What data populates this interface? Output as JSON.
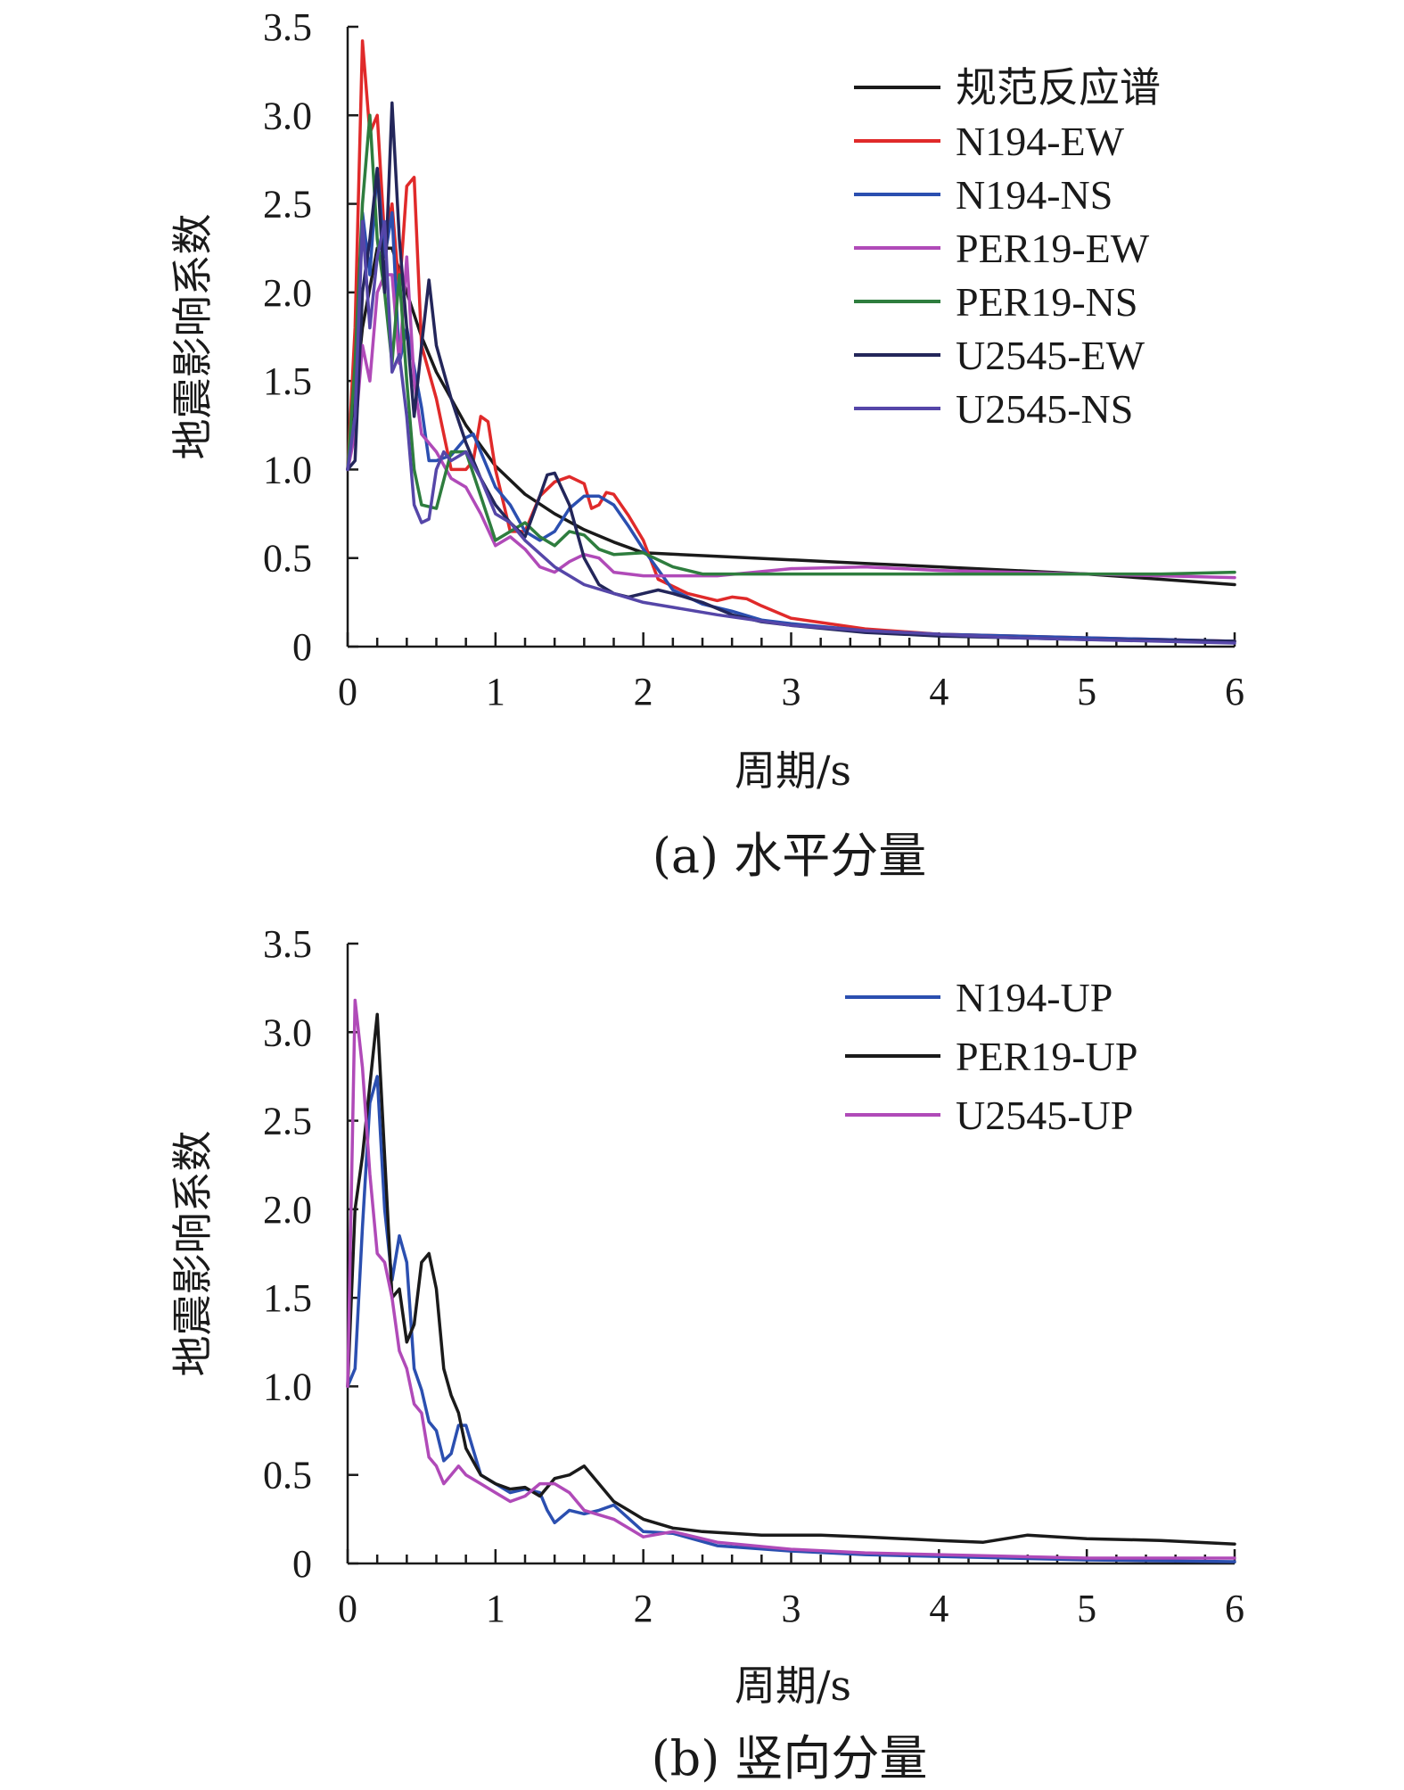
{
  "chart_data": [
    {
      "type": "line",
      "caption": "(a) 水平分量",
      "xlabel": "周期/s",
      "ylabel": "地震影响系数",
      "xlim": [
        0,
        6
      ],
      "ylim": [
        0,
        3.5
      ],
      "xticks": [
        "0",
        "1",
        "2",
        "3",
        "4",
        "5",
        "6"
      ],
      "yticks": [
        "0",
        "0.5",
        "1.0",
        "1.5",
        "2.0",
        "2.5",
        "3.0",
        "3.5"
      ],
      "legend_position": "top-right",
      "series": [
        {
          "name": "规范反应谱",
          "color": "#1a1a1a",
          "x": [
            0,
            0.1,
            0.2,
            0.3,
            0.4,
            0.5,
            0.6,
            0.8,
            1.0,
            1.2,
            1.4,
            1.6,
            1.8,
            2.0,
            2.5,
            3.0,
            3.5,
            4.0,
            4.5,
            5.0,
            5.5,
            6.0
          ],
          "y": [
            1.0,
            1.8,
            2.25,
            2.25,
            2.0,
            1.75,
            1.55,
            1.25,
            1.02,
            0.86,
            0.75,
            0.66,
            0.59,
            0.53,
            0.51,
            0.49,
            0.47,
            0.45,
            0.43,
            0.41,
            0.38,
            0.35
          ]
        },
        {
          "name": "N194-EW",
          "color": "#e02a2a",
          "x": [
            0,
            0.05,
            0.1,
            0.15,
            0.2,
            0.25,
            0.3,
            0.35,
            0.4,
            0.45,
            0.5,
            0.6,
            0.7,
            0.8,
            0.85,
            0.9,
            0.95,
            1.0,
            1.1,
            1.2,
            1.3,
            1.4,
            1.5,
            1.6,
            1.65,
            1.7,
            1.75,
            1.8,
            1.9,
            2.0,
            2.1,
            2.3,
            2.5,
            2.6,
            2.7,
            2.8,
            3.0,
            3.5,
            4.0,
            5.0,
            6.0
          ],
          "y": [
            1.0,
            1.8,
            3.42,
            2.9,
            3.0,
            2.3,
            2.5,
            2.0,
            2.6,
            2.65,
            1.7,
            1.4,
            1.0,
            1.0,
            1.05,
            1.3,
            1.27,
            1.0,
            0.65,
            0.65,
            0.85,
            0.93,
            0.96,
            0.92,
            0.78,
            0.8,
            0.87,
            0.86,
            0.74,
            0.6,
            0.38,
            0.3,
            0.26,
            0.28,
            0.27,
            0.23,
            0.16,
            0.1,
            0.07,
            0.05,
            0.03
          ]
        },
        {
          "name": "N194-NS",
          "color": "#2b4fb0",
          "x": [
            0,
            0.05,
            0.1,
            0.15,
            0.2,
            0.25,
            0.3,
            0.35,
            0.4,
            0.5,
            0.55,
            0.6,
            0.7,
            0.8,
            0.85,
            0.9,
            1.0,
            1.1,
            1.2,
            1.3,
            1.4,
            1.5,
            1.6,
            1.7,
            1.8,
            1.9,
            2.0,
            2.2,
            2.4,
            2.6,
            2.8,
            3.0,
            3.5,
            4.0,
            5.0,
            6.0
          ],
          "y": [
            1.0,
            1.3,
            2.45,
            2.1,
            2.7,
            2.2,
            2.45,
            1.6,
            1.8,
            1.35,
            1.05,
            1.05,
            1.08,
            1.18,
            1.2,
            1.1,
            0.9,
            0.8,
            0.65,
            0.6,
            0.65,
            0.78,
            0.85,
            0.85,
            0.8,
            0.68,
            0.55,
            0.32,
            0.24,
            0.2,
            0.15,
            0.13,
            0.09,
            0.07,
            0.05,
            0.03
          ]
        },
        {
          "name": "PER19-EW",
          "color": "#b04ab8",
          "x": [
            0,
            0.05,
            0.1,
            0.15,
            0.2,
            0.25,
            0.3,
            0.35,
            0.4,
            0.45,
            0.5,
            0.6,
            0.7,
            0.8,
            0.9,
            1.0,
            1.1,
            1.2,
            1.3,
            1.4,
            1.5,
            1.6,
            1.7,
            1.8,
            2.0,
            2.5,
            3.0,
            3.5,
            4.0,
            4.5,
            5.0,
            5.5,
            6.0
          ],
          "y": [
            1.0,
            1.2,
            1.7,
            1.5,
            2.0,
            2.1,
            2.1,
            1.6,
            2.2,
            1.5,
            1.2,
            1.1,
            0.95,
            0.9,
            0.75,
            0.57,
            0.62,
            0.55,
            0.45,
            0.42,
            0.48,
            0.52,
            0.5,
            0.42,
            0.4,
            0.4,
            0.44,
            0.45,
            0.43,
            0.42,
            0.41,
            0.4,
            0.39
          ]
        },
        {
          "name": "PER19-NS",
          "color": "#2e7d3e",
          "x": [
            0,
            0.05,
            0.1,
            0.15,
            0.2,
            0.25,
            0.3,
            0.35,
            0.4,
            0.45,
            0.5,
            0.6,
            0.7,
            0.8,
            0.9,
            1.0,
            1.1,
            1.2,
            1.3,
            1.4,
            1.5,
            1.6,
            1.7,
            1.8,
            2.0,
            2.2,
            2.4,
            3.0,
            3.5,
            4.0,
            4.5,
            5.0,
            5.5,
            6.0
          ],
          "y": [
            1.0,
            1.6,
            2.5,
            3.0,
            2.3,
            2.0,
            1.6,
            2.1,
            1.5,
            1.0,
            0.8,
            0.78,
            1.1,
            1.1,
            0.85,
            0.6,
            0.65,
            0.7,
            0.62,
            0.57,
            0.65,
            0.63,
            0.55,
            0.52,
            0.53,
            0.45,
            0.41,
            0.41,
            0.41,
            0.41,
            0.41,
            0.41,
            0.41,
            0.42
          ]
        },
        {
          "name": "U2545-EW",
          "color": "#23265a",
          "x": [
            0,
            0.05,
            0.1,
            0.15,
            0.2,
            0.25,
            0.3,
            0.35,
            0.4,
            0.45,
            0.5,
            0.55,
            0.6,
            0.7,
            0.8,
            0.9,
            1.0,
            1.1,
            1.2,
            1.3,
            1.35,
            1.4,
            1.5,
            1.6,
            1.7,
            1.8,
            1.9,
            2.0,
            2.1,
            2.2,
            2.4,
            2.6,
            2.8,
            3.0,
            3.5,
            4.0,
            5.0,
            6.0
          ],
          "y": [
            1.0,
            1.05,
            2.0,
            2.3,
            2.7,
            2.0,
            3.07,
            2.3,
            1.8,
            1.3,
            1.7,
            2.07,
            1.7,
            1.4,
            1.15,
            0.95,
            0.8,
            0.7,
            0.62,
            0.85,
            0.97,
            0.98,
            0.8,
            0.5,
            0.35,
            0.3,
            0.28,
            0.3,
            0.32,
            0.3,
            0.25,
            0.18,
            0.14,
            0.12,
            0.08,
            0.06,
            0.04,
            0.03
          ]
        },
        {
          "name": "U2545-NS",
          "color": "#5546a8",
          "x": [
            0,
            0.05,
            0.1,
            0.15,
            0.2,
            0.25,
            0.3,
            0.35,
            0.4,
            0.45,
            0.5,
            0.55,
            0.6,
            0.65,
            0.7,
            0.8,
            0.9,
            1.0,
            1.1,
            1.2,
            1.4,
            1.6,
            1.8,
            2.0,
            2.5,
            3.0,
            3.5,
            4.0,
            4.5,
            5.0,
            6.0
          ],
          "y": [
            1.0,
            1.3,
            2.4,
            1.8,
            2.2,
            2.4,
            1.55,
            1.65,
            1.3,
            0.8,
            0.7,
            0.72,
            1.0,
            1.1,
            1.05,
            1.1,
            0.95,
            0.75,
            0.7,
            0.6,
            0.45,
            0.35,
            0.3,
            0.25,
            0.18,
            0.12,
            0.09,
            0.07,
            0.05,
            0.04,
            0.02
          ]
        }
      ]
    },
    {
      "type": "line",
      "caption": "(b) 竖向分量",
      "xlabel": "周期/s",
      "ylabel": "地震影响系数",
      "xlim": [
        0,
        6
      ],
      "ylim": [
        0,
        3.5
      ],
      "xticks": [
        "0",
        "1",
        "2",
        "3",
        "4",
        "5",
        "6"
      ],
      "yticks": [
        "0",
        "0.5",
        "1.0",
        "1.5",
        "2.0",
        "2.5",
        "3.0",
        "3.5"
      ],
      "legend_position": "top-right",
      "series": [
        {
          "name": "N194-UP",
          "color": "#2b4fb0",
          "x": [
            0,
            0.05,
            0.1,
            0.15,
            0.2,
            0.25,
            0.3,
            0.35,
            0.4,
            0.45,
            0.5,
            0.55,
            0.6,
            0.65,
            0.7,
            0.75,
            0.8,
            0.9,
            1.0,
            1.1,
            1.2,
            1.3,
            1.35,
            1.4,
            1.5,
            1.6,
            1.7,
            1.8,
            2.0,
            2.2,
            2.5,
            3.0,
            3.5,
            4.0,
            5.0,
            6.0
          ],
          "y": [
            1.0,
            1.1,
            1.9,
            2.6,
            2.75,
            2.0,
            1.6,
            1.85,
            1.7,
            1.1,
            0.98,
            0.8,
            0.75,
            0.58,
            0.62,
            0.78,
            0.78,
            0.5,
            0.45,
            0.4,
            0.42,
            0.4,
            0.3,
            0.23,
            0.3,
            0.28,
            0.3,
            0.33,
            0.18,
            0.17,
            0.1,
            0.07,
            0.05,
            0.04,
            0.02,
            0.01
          ]
        },
        {
          "name": "PER19-UP",
          "color": "#1a1a1a",
          "x": [
            0,
            0.05,
            0.1,
            0.15,
            0.2,
            0.25,
            0.3,
            0.35,
            0.4,
            0.45,
            0.5,
            0.55,
            0.6,
            0.65,
            0.7,
            0.75,
            0.8,
            0.9,
            1.0,
            1.1,
            1.2,
            1.3,
            1.4,
            1.5,
            1.6,
            1.7,
            1.8,
            1.9,
            2.0,
            2.2,
            2.4,
            2.6,
            2.8,
            3.0,
            3.2,
            3.5,
            4.0,
            4.3,
            4.6,
            5.0,
            5.5,
            6.0
          ],
          "y": [
            1.0,
            2.0,
            2.3,
            2.7,
            3.1,
            2.3,
            1.5,
            1.55,
            1.25,
            1.35,
            1.7,
            1.75,
            1.55,
            1.1,
            0.95,
            0.85,
            0.65,
            0.5,
            0.45,
            0.42,
            0.43,
            0.38,
            0.48,
            0.5,
            0.55,
            0.45,
            0.35,
            0.3,
            0.25,
            0.2,
            0.18,
            0.17,
            0.16,
            0.16,
            0.16,
            0.15,
            0.13,
            0.12,
            0.16,
            0.14,
            0.13,
            0.11
          ]
        },
        {
          "name": "U2545-UP",
          "color": "#b04ab8",
          "x": [
            0,
            0.05,
            0.1,
            0.15,
            0.2,
            0.25,
            0.3,
            0.35,
            0.4,
            0.45,
            0.5,
            0.55,
            0.6,
            0.65,
            0.7,
            0.75,
            0.8,
            0.9,
            1.0,
            1.1,
            1.2,
            1.3,
            1.4,
            1.5,
            1.6,
            1.8,
            2.0,
            2.2,
            2.5,
            3.0,
            3.5,
            4.0,
            5.0,
            6.0
          ],
          "y": [
            1.0,
            3.18,
            2.8,
            2.2,
            1.75,
            1.7,
            1.5,
            1.2,
            1.1,
            0.9,
            0.85,
            0.6,
            0.55,
            0.45,
            0.5,
            0.55,
            0.5,
            0.45,
            0.4,
            0.35,
            0.38,
            0.45,
            0.45,
            0.4,
            0.3,
            0.25,
            0.15,
            0.18,
            0.12,
            0.08,
            0.06,
            0.05,
            0.03,
            0.03
          ]
        }
      ]
    }
  ]
}
